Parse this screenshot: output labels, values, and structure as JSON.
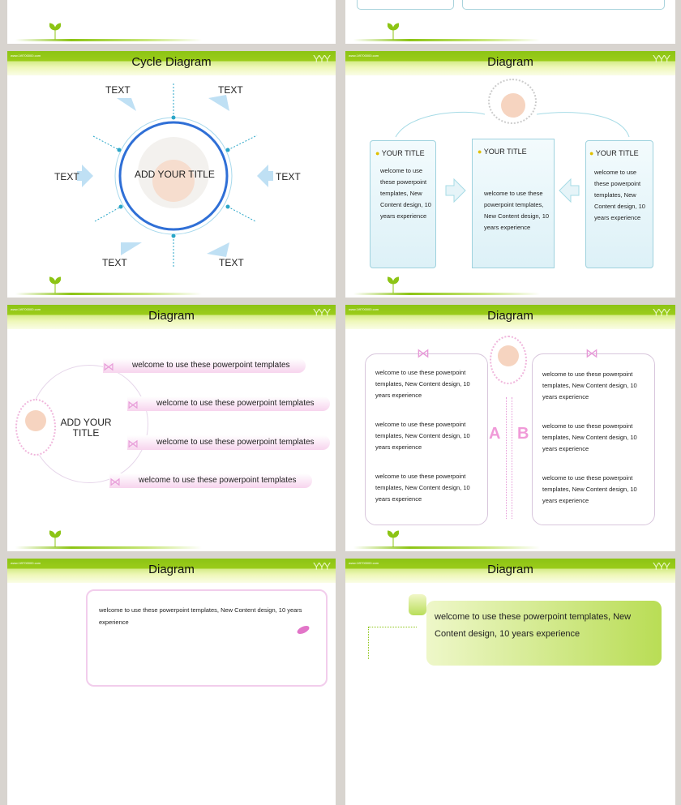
{
  "common": {
    "url": "www.1t9700000.com",
    "brand": "#8cc414"
  },
  "slides": [
    {
      "title": "Cycle Diagram",
      "labels": [
        "TEXT",
        "TEXT",
        "TEXT",
        "TEXT",
        "TEXT",
        "TEXT"
      ],
      "center": "ADD YOUR TITLE"
    },
    {
      "title": "Diagram",
      "cards": [
        {
          "title": "YOUR TITLE",
          "text": "welcome to use these powerpoint templates, New Content design, 10 years experience"
        },
        {
          "title": "YOUR TITLE",
          "text": "welcome to use these powerpoint templates, New Content design, 10 years experience"
        },
        {
          "title": "YOUR TITLE",
          "text": "welcome to use these powerpoint templates, New Content design, 10 years experience"
        }
      ]
    },
    {
      "title": "Diagram",
      "center": "ADD YOUR TITLE",
      "items": [
        "welcome to use these powerpoint templates",
        "welcome to use these powerpoint templates",
        "welcome to use these powerpoint templates",
        "welcome to use these powerpoint templates"
      ]
    },
    {
      "title": "Diagram",
      "letters": [
        "A",
        "B"
      ],
      "left": [
        "welcome to use these powerpoint templates, New Content design, 10 years experience",
        "welcome to use these powerpoint templates, New Content design, 10 years experience",
        "welcome to use these powerpoint templates, New Content design, 10 years experience"
      ],
      "right": [
        "welcome to use these powerpoint templates, New Content design, 10 years experience",
        "welcome to use these powerpoint templates, New Content design, 10 years experience",
        "welcome to use these powerpoint templates, New Content design, 10 years experience"
      ]
    },
    {
      "title": "Diagram",
      "text": "welcome to use these powerpoint templates, New Content design, 10 years experience"
    },
    {
      "title": "Diagram",
      "text": "welcome to use these powerpoint templates, New Content design, 10 years experience"
    }
  ]
}
